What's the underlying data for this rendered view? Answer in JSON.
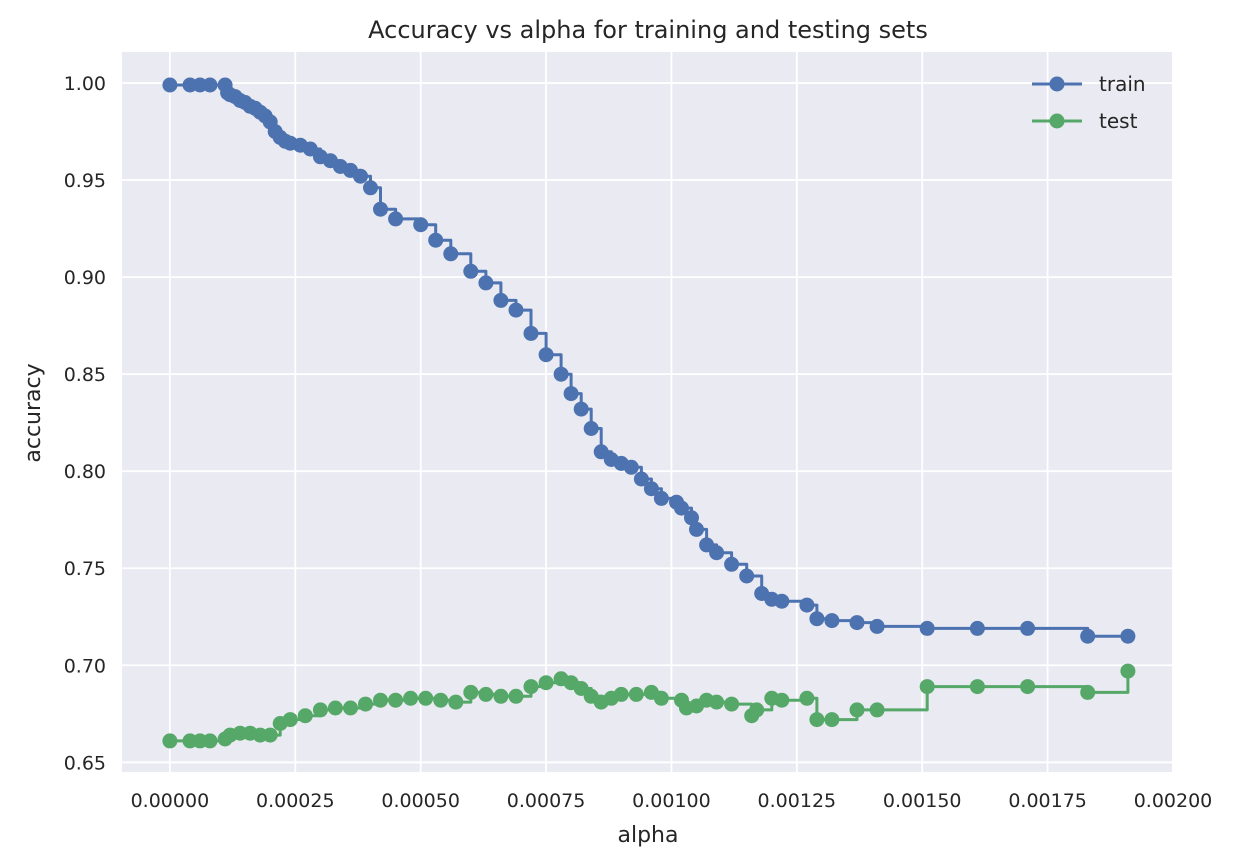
{
  "chart_data": {
    "type": "line",
    "title": "Accuracy vs alpha for training and testing sets",
    "xlabel": "alpha",
    "ylabel": "accuracy",
    "xlim": [
      -9.55e-05,
      0.002
    ],
    "ylim": [
      0.645,
      1.016
    ],
    "xticks": [
      "0.00000",
      "0.00025",
      "0.00050",
      "0.00075",
      "0.00100",
      "0.00125",
      "0.00150",
      "0.00175",
      "0.00200"
    ],
    "xtick_values": [
      0,
      0.00025,
      0.0005,
      0.00075,
      0.001,
      0.00125,
      0.0015,
      0.00175,
      0.002
    ],
    "yticks": [
      "0.65",
      "0.70",
      "0.75",
      "0.80",
      "0.85",
      "0.90",
      "0.95",
      "1.00"
    ],
    "ytick_values": [
      0.65,
      0.7,
      0.75,
      0.8,
      0.85,
      0.9,
      0.95,
      1.0
    ],
    "grid": true,
    "legend_position": "top-right",
    "drawstyle": "steps-post",
    "series": [
      {
        "name": "train",
        "color": "#4c72b0",
        "x": [
          0,
          4e-05,
          6e-05,
          8e-05,
          0.00011,
          0.000115,
          0.00012,
          0.00013,
          0.00014,
          0.00015,
          0.00016,
          0.00017,
          0.00018,
          0.00019,
          0.0002,
          0.00021,
          0.00022,
          0.00023,
          0.00024,
          0.00026,
          0.00028,
          0.0003,
          0.00032,
          0.00034,
          0.00036,
          0.00038,
          0.0004,
          0.00042,
          0.00045,
          0.0005,
          0.00053,
          0.00056,
          0.0006,
          0.00063,
          0.00066,
          0.00069,
          0.00072,
          0.00075,
          0.00078,
          0.0008,
          0.00082,
          0.00084,
          0.00086,
          0.00088,
          0.0009,
          0.00092,
          0.00094,
          0.00096,
          0.00098,
          0.00101,
          0.00102,
          0.00104,
          0.00105,
          0.00107,
          0.00109,
          0.00112,
          0.00115,
          0.00118,
          0.0012,
          0.00122,
          0.00127,
          0.00129,
          0.00132,
          0.00137,
          0.00141,
          0.00151,
          0.00161,
          0.00171,
          0.00183,
          0.00191
        ],
        "y": [
          0.999,
          0.999,
          0.999,
          0.999,
          0.999,
          0.995,
          0.994,
          0.993,
          0.991,
          0.99,
          0.988,
          0.987,
          0.985,
          0.983,
          0.98,
          0.975,
          0.972,
          0.97,
          0.969,
          0.968,
          0.966,
          0.962,
          0.96,
          0.957,
          0.955,
          0.952,
          0.946,
          0.935,
          0.93,
          0.927,
          0.919,
          0.912,
          0.903,
          0.897,
          0.888,
          0.883,
          0.871,
          0.86,
          0.85,
          0.84,
          0.832,
          0.822,
          0.81,
          0.806,
          0.804,
          0.802,
          0.796,
          0.791,
          0.786,
          0.784,
          0.781,
          0.776,
          0.77,
          0.762,
          0.758,
          0.752,
          0.746,
          0.737,
          0.734,
          0.733,
          0.731,
          0.724,
          0.723,
          0.722,
          0.72,
          0.719,
          0.719,
          0.719,
          0.715,
          0.715
        ]
      },
      {
        "name": "test",
        "color": "#55a868",
        "x": [
          0,
          4e-05,
          6e-05,
          8e-05,
          0.00011,
          0.00012,
          0.00014,
          0.00016,
          0.00018,
          0.0002,
          0.00022,
          0.00024,
          0.00027,
          0.0003,
          0.00033,
          0.00036,
          0.00039,
          0.00042,
          0.00045,
          0.00048,
          0.00051,
          0.00054,
          0.00057,
          0.0006,
          0.00063,
          0.00066,
          0.00069,
          0.00072,
          0.00075,
          0.00078,
          0.0008,
          0.00082,
          0.00084,
          0.00086,
          0.00088,
          0.0009,
          0.00093,
          0.00096,
          0.00098,
          0.00102,
          0.00103,
          0.00105,
          0.00107,
          0.00109,
          0.00112,
          0.00116,
          0.00117,
          0.0012,
          0.00122,
          0.00127,
          0.00129,
          0.00132,
          0.00137,
          0.00141,
          0.00151,
          0.00161,
          0.00171,
          0.00183,
          0.00191
        ],
        "y": [
          0.661,
          0.661,
          0.661,
          0.661,
          0.662,
          0.664,
          0.665,
          0.665,
          0.664,
          0.664,
          0.67,
          0.672,
          0.674,
          0.677,
          0.678,
          0.678,
          0.68,
          0.682,
          0.682,
          0.683,
          0.683,
          0.682,
          0.681,
          0.686,
          0.685,
          0.684,
          0.684,
          0.689,
          0.691,
          0.693,
          0.691,
          0.688,
          0.684,
          0.681,
          0.683,
          0.685,
          0.685,
          0.686,
          0.683,
          0.682,
          0.678,
          0.679,
          0.682,
          0.681,
          0.68,
          0.674,
          0.677,
          0.683,
          0.682,
          0.683,
          0.672,
          0.672,
          0.677,
          0.677,
          0.689,
          0.689,
          0.689,
          0.686,
          0.697
        ]
      }
    ]
  }
}
